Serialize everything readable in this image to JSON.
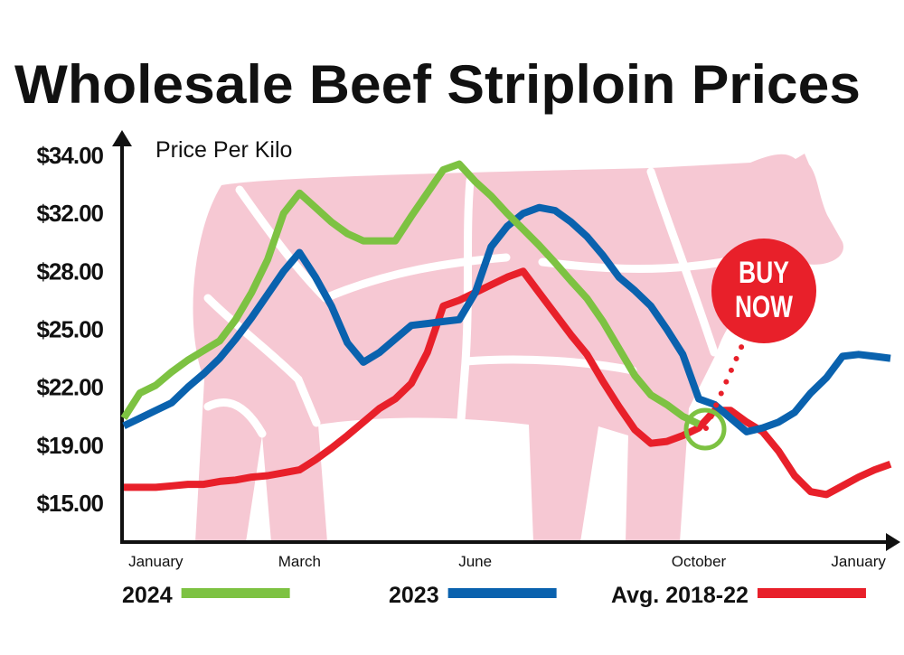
{
  "chart_data": {
    "type": "line",
    "title": "Wholesale Beef Striploin Prices",
    "y_label": "Price Per Kilo",
    "annotations": [
      "BUY",
      "NOW"
    ],
    "categories": [
      null,
      null,
      "January",
      null,
      null,
      null,
      null,
      null,
      null,
      null,
      null,
      "March",
      null,
      null,
      null,
      null,
      null,
      null,
      null,
      null,
      null,
      null,
      "June",
      null,
      null,
      null,
      null,
      null,
      null,
      null,
      null,
      null,
      null,
      null,
      null,
      null,
      "October",
      null,
      null,
      null,
      null,
      null,
      null,
      null,
      null,
      null,
      "January",
      null,
      null
    ],
    "ylim": [
      12.3,
      34.5
    ],
    "yticks": [
      {
        "value": 15,
        "label": "$15.00"
      },
      {
        "value": 19,
        "label": "$19.00"
      },
      {
        "value": 22,
        "label": "$22.00"
      },
      {
        "value": 25,
        "label": "$25.00"
      },
      {
        "value": 28,
        "label": "$28.00"
      },
      {
        "value": 32,
        "label": "$32.00"
      },
      {
        "value": 34,
        "label": "$34.00"
      }
    ],
    "grid": false,
    "series": [
      {
        "name": "2024",
        "color": "#7dc242",
        "values": [
          20.4,
          21.7,
          22.1,
          22.8,
          23.4,
          23.9,
          24.4,
          25.5,
          26.9,
          28.8,
          32.0,
          32.7,
          32.2,
          31.4,
          30.6,
          30.1,
          30.1,
          30.1,
          31.8,
          32.7,
          33.5,
          33.7,
          33.1,
          32.6,
          32.0,
          30.9,
          29.8,
          28.6,
          27.5,
          26.6,
          25.4,
          24.0,
          22.6,
          21.6,
          21.1,
          20.5,
          20.1,
          null,
          null,
          null,
          null,
          null,
          null,
          null,
          null,
          null,
          null,
          null,
          null
        ]
      },
      {
        "name": "2023",
        "color": "#0a62ae",
        "values": [
          20.0,
          20.4,
          20.8,
          21.2,
          22.0,
          22.7,
          23.5,
          24.5,
          25.6,
          26.8,
          28.0,
          29.3,
          27.7,
          26.2,
          24.3,
          23.3,
          23.8,
          24.5,
          25.2,
          25.3,
          25.4,
          25.5,
          26.9,
          29.7,
          31.1,
          32.0,
          32.2,
          32.1,
          31.4,
          30.4,
          29.1,
          27.7,
          27.0,
          26.2,
          25.0,
          23.7,
          21.4,
          21.1,
          20.4,
          19.7,
          19.9,
          20.2,
          20.7,
          21.7,
          22.5,
          23.6,
          23.7,
          23.6,
          23.5
        ]
      },
      {
        "name": "Avg. 2018-22",
        "color": "#e8202a",
        "values": [
          16.1,
          16.1,
          16.1,
          16.2,
          16.3,
          16.3,
          16.5,
          16.6,
          16.8,
          16.9,
          17.1,
          17.3,
          18.0,
          18.8,
          19.5,
          20.2,
          20.9,
          21.4,
          22.2,
          23.8,
          26.2,
          26.5,
          26.9,
          27.3,
          27.7,
          28.0,
          26.9,
          25.8,
          24.7,
          23.7,
          22.3,
          21.0,
          19.8,
          19.1,
          19.2,
          19.5,
          19.9,
          20.8,
          20.8,
          20.2,
          19.7,
          18.6,
          16.9,
          15.8,
          15.6,
          16.2,
          16.8,
          17.3,
          17.7
        ]
      }
    ]
  }
}
